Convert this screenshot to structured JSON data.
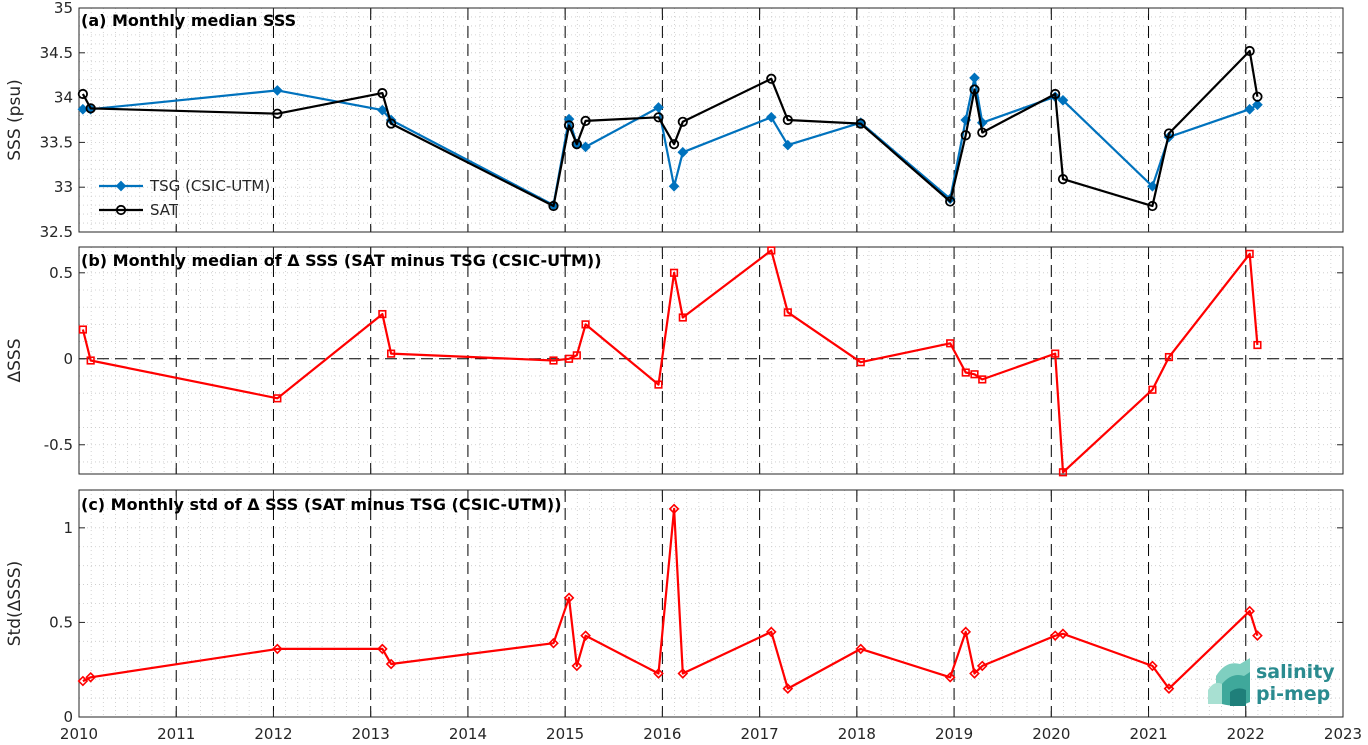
{
  "chart_data": [
    {
      "type": "line",
      "title": "(a) Monthly median SSS",
      "xlabel": "",
      "ylabel": "SSS (psu)",
      "xlim": [
        2010,
        2023
      ],
      "ylim": [
        32.5,
        35
      ],
      "xticks": [
        2010,
        2011,
        2012,
        2013,
        2014,
        2015,
        2016,
        2017,
        2018,
        2019,
        2020,
        2021,
        2022,
        2023
      ],
      "yticks": [
        32.5,
        33,
        33.5,
        34,
        34.5,
        35
      ],
      "yticklabels": [
        "32.5",
        "33",
        "33.5",
        "34",
        "34.5",
        "35"
      ],
      "grid": "minor dotted, dashed vertical lines at each year",
      "legend_position": "left",
      "series": [
        {
          "name": "TSG (CSIC-UTM)",
          "color": "#0072BD",
          "marker": "diamond",
          "x": [
            2010.04,
            2010.12,
            2012.04,
            2013.12,
            2013.21,
            2014.88,
            2015.04,
            2015.12,
            2015.21,
            2015.96,
            2016.12,
            2016.21,
            2017.12,
            2017.29,
            2018.04,
            2018.96,
            2019.12,
            2019.21,
            2019.29,
            2020.04,
            2020.12,
            2021.04,
            2021.21,
            2022.04,
            2022.12
          ],
          "y": [
            33.87,
            33.87,
            34.08,
            33.86,
            33.75,
            32.8,
            33.76,
            33.48,
            33.45,
            33.89,
            33.01,
            33.39,
            33.78,
            33.47,
            33.72,
            32.87,
            33.75,
            34.22,
            33.72,
            34.01,
            33.97,
            33.01,
            33.56,
            33.87,
            33.92
          ]
        },
        {
          "name": "SAT",
          "color": "#000000",
          "marker": "circle",
          "x": [
            2010.04,
            2010.12,
            2012.04,
            2013.12,
            2013.21,
            2014.88,
            2015.04,
            2015.12,
            2015.21,
            2015.96,
            2016.12,
            2016.21,
            2017.12,
            2017.29,
            2018.04,
            2018.96,
            2019.12,
            2019.21,
            2019.29,
            2020.04,
            2020.12,
            2021.04,
            2021.21,
            2022.04,
            2022.12
          ],
          "y": [
            34.04,
            33.88,
            33.82,
            34.05,
            33.71,
            32.79,
            33.69,
            33.48,
            33.74,
            33.78,
            33.48,
            33.73,
            34.21,
            33.75,
            33.71,
            32.84,
            33.58,
            34.09,
            33.61,
            34.04,
            33.09,
            32.79,
            33.6,
            34.52,
            34.01
          ]
        }
      ]
    },
    {
      "type": "line",
      "title": "(b) Monthly median of Δ SSS (SAT minus TSG (CSIC-UTM))",
      "xlabel": "",
      "ylabel": "ΔSSS",
      "xlim": [
        2010,
        2023
      ],
      "ylim": [
        -0.67,
        0.65
      ],
      "yticks": [
        -0.5,
        0,
        0.5
      ],
      "yticklabels": [
        "-0.5",
        "0",
        "0.5"
      ],
      "grid": "minor dotted, dashed vertical lines at each year, dashed zero line",
      "series": [
        {
          "color": "#FF0000",
          "marker": "square",
          "x": [
            2010.04,
            2010.12,
            2012.04,
            2013.12,
            2013.21,
            2014.88,
            2015.04,
            2015.12,
            2015.21,
            2015.96,
            2016.12,
            2016.21,
            2017.12,
            2017.29,
            2018.04,
            2018.96,
            2019.12,
            2019.21,
            2019.29,
            2020.04,
            2020.12,
            2021.04,
            2021.21,
            2022.04,
            2022.12
          ],
          "y": [
            0.17,
            -0.01,
            -0.23,
            0.26,
            0.03,
            -0.01,
            0.0,
            0.02,
            0.2,
            -0.15,
            0.5,
            0.24,
            0.63,
            0.27,
            -0.02,
            0.09,
            -0.08,
            -0.09,
            -0.12,
            0.03,
            -0.66,
            -0.18,
            0.01,
            0.61,
            0.08
          ]
        }
      ]
    },
    {
      "type": "line",
      "title": "(c) Monthly std of Δ SSS (SAT minus TSG (CSIC-UTM))",
      "xlabel": "",
      "ylabel": "Std(ΔSSS)",
      "xlim": [
        2010,
        2023
      ],
      "ylim": [
        0,
        1.2
      ],
      "xticks": [
        2010,
        2011,
        2012,
        2013,
        2014,
        2015,
        2016,
        2017,
        2018,
        2019,
        2020,
        2021,
        2022,
        2023
      ],
      "xticklabels": [
        "2010",
        "2011",
        "2012",
        "2013",
        "2014",
        "2015",
        "2016",
        "2017",
        "2018",
        "2019",
        "2020",
        "2021",
        "2022",
        "2023"
      ],
      "yticks": [
        0,
        0.5,
        1
      ],
      "yticklabels": [
        "0",
        "0.5",
        "1"
      ],
      "grid": "minor dotted, dashed vertical lines at each year",
      "series": [
        {
          "color": "#FF0000",
          "marker": "diamond",
          "x": [
            2010.04,
            2010.12,
            2012.04,
            2013.12,
            2013.21,
            2014.88,
            2015.04,
            2015.12,
            2015.21,
            2015.96,
            2016.12,
            2016.21,
            2017.12,
            2017.29,
            2018.04,
            2018.96,
            2019.12,
            2019.21,
            2019.29,
            2020.04,
            2020.12,
            2021.04,
            2021.21,
            2022.04,
            2022.12
          ],
          "y": [
            0.19,
            0.21,
            0.36,
            0.36,
            0.28,
            0.39,
            0.63,
            0.27,
            0.43,
            0.23,
            1.1,
            0.23,
            0.45,
            0.15,
            0.36,
            0.21,
            0.45,
            0.23,
            0.27,
            0.43,
            0.44,
            0.27,
            0.15,
            0.56,
            0.43
          ]
        }
      ]
    }
  ],
  "logo": {
    "line1": "salinity",
    "line2": "pi-mep",
    "color": "#2a8b8f"
  }
}
